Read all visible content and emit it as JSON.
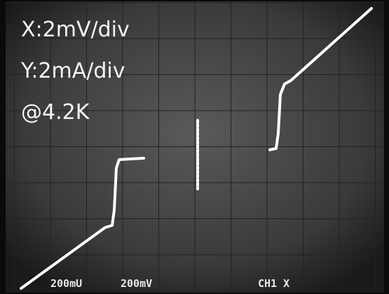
{
  "overlay": {
    "lines": [
      "X:2mV/div",
      "Y:2mA/div",
      "@4.2K"
    ]
  },
  "readout": {
    "ch1_scale": "200mU",
    "ch2_scale": "200mV",
    "channel": "CH1 X"
  }
}
